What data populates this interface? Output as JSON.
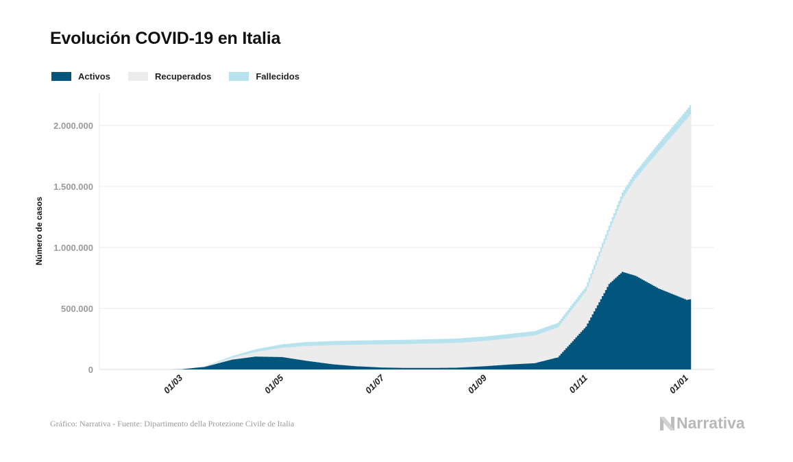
{
  "chart_data": {
    "type": "area",
    "stacked": true,
    "title": "Evolución COVID-19 en Italia",
    "xlabel": "",
    "ylabel": "Número de casos",
    "xlim": [
      "2020-01-12",
      "2021-01-18"
    ],
    "ylim": [
      0,
      2270000
    ],
    "grid": true,
    "legend_position": "top-left",
    "y_ticks": [
      0,
      500000,
      1000000,
      1500000,
      2000000
    ],
    "y_tick_labels": [
      "0",
      "500.000",
      "1.000.000",
      "1.500.000",
      "2.000.000"
    ],
    "x_ticks": [
      "2020-03-01",
      "2020-05-01",
      "2020-07-01",
      "2020-09-01",
      "2020-11-01",
      "2021-01-01"
    ],
    "x_tick_labels": [
      "01/03",
      "01/05",
      "01/07",
      "01/09",
      "01/11",
      "01/01"
    ],
    "dates": [
      "2020-02-24",
      "2020-03-01",
      "2020-03-15",
      "2020-04-01",
      "2020-04-15",
      "2020-05-01",
      "2020-05-15",
      "2020-06-01",
      "2020-06-15",
      "2020-07-01",
      "2020-07-15",
      "2020-08-01",
      "2020-08-15",
      "2020-09-01",
      "2020-09-15",
      "2020-10-01",
      "2020-10-15",
      "2020-11-01",
      "2020-11-15",
      "2020-11-23",
      "2020-12-01",
      "2020-12-15",
      "2021-01-01",
      "2021-01-03"
    ],
    "series": [
      {
        "name": "Activos",
        "color": "#02557d",
        "values": [
          221,
          1577,
          20603,
          80572,
          105418,
          101551,
          72070,
          42075,
          26274,
          15563,
          12493,
          12565,
          14406,
          26754,
          39712,
          51263,
          99266,
          351386,
          701039,
          800000,
          767867,
          663313,
          570458,
          575173
        ]
      },
      {
        "name": "Recuperados",
        "color": "#ececec",
        "values": [
          1,
          83,
          2335,
          16847,
          38092,
          75945,
          120205,
          157507,
          176370,
          190248,
          196016,
          200589,
          203786,
          207944,
          214645,
          227704,
          245964,
          289426,
          432931,
          600000,
          797636,
          1126006,
          1484015,
          1515267
        ]
      },
      {
        "name": "Fallecidos",
        "color": "#b9e2ef",
        "values": [
          7,
          34,
          1809,
          13155,
          21645,
          28236,
          31610,
          33415,
          34371,
          34767,
          34997,
          35146,
          35234,
          35491,
          35633,
          35894,
          36372,
          38618,
          44683,
          50453,
          55576,
          65857,
          74621,
          75332
        ]
      }
    ]
  },
  "footer": "Gráfico: Narrativa - Fuente: Dipartimento della Protezione Civile de Italia",
  "logo": "Narrativa"
}
